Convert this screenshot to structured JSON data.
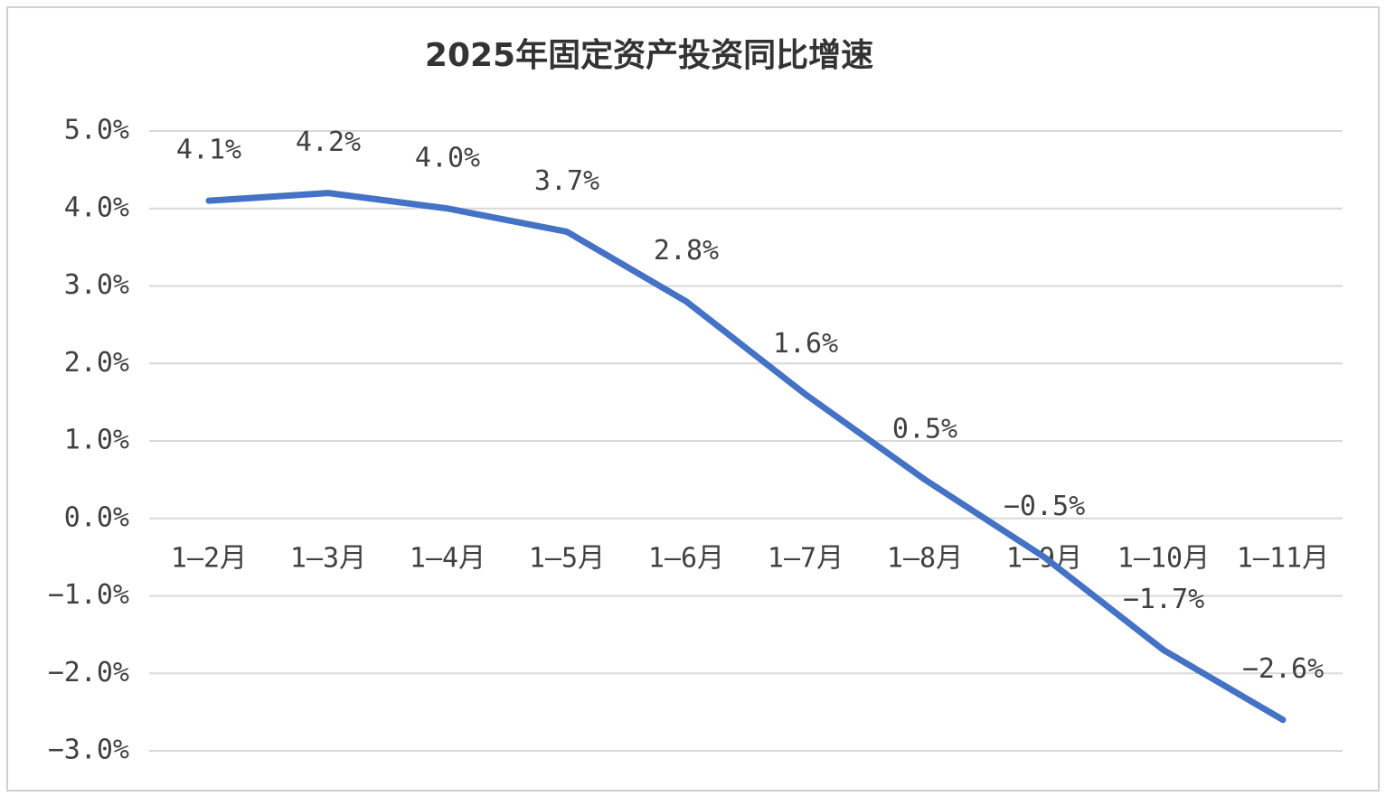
{
  "chart_data": {
    "type": "line",
    "title": "2025年固定资产投资同比增速",
    "categories": [
      "1—2月",
      "1—3月",
      "1—4月",
      "1—5月",
      "1—6月",
      "1—7月",
      "1—8月",
      "1—9月",
      "1—10月",
      "1—11月"
    ],
    "values": [
      4.1,
      4.2,
      4.0,
      3.7,
      2.8,
      1.6,
      0.5,
      -0.5,
      -1.7,
      -2.6
    ],
    "value_labels": [
      "4.1%",
      "4.2%",
      "4.0%",
      "3.7%",
      "2.8%",
      "1.6%",
      "0.5%",
      "−0.5%",
      "−1.7%",
      "−2.6%"
    ],
    "color": "#4472c4",
    "ylim": [
      -3,
      5
    ],
    "yticks": [
      {
        "value": 5,
        "label": "5.0%"
      },
      {
        "value": 4,
        "label": "4.0%"
      },
      {
        "value": 3,
        "label": "3.0%"
      },
      {
        "value": 2,
        "label": "2.0%"
      },
      {
        "value": 1,
        "label": "1.0%"
      },
      {
        "value": 0,
        "label": "0.0%"
      },
      {
        "value": -1,
        "label": "−1.0%"
      },
      {
        "value": -2,
        "label": "−2.0%"
      },
      {
        "value": -3,
        "label": "−3.0%"
      }
    ],
    "grid": true
  }
}
